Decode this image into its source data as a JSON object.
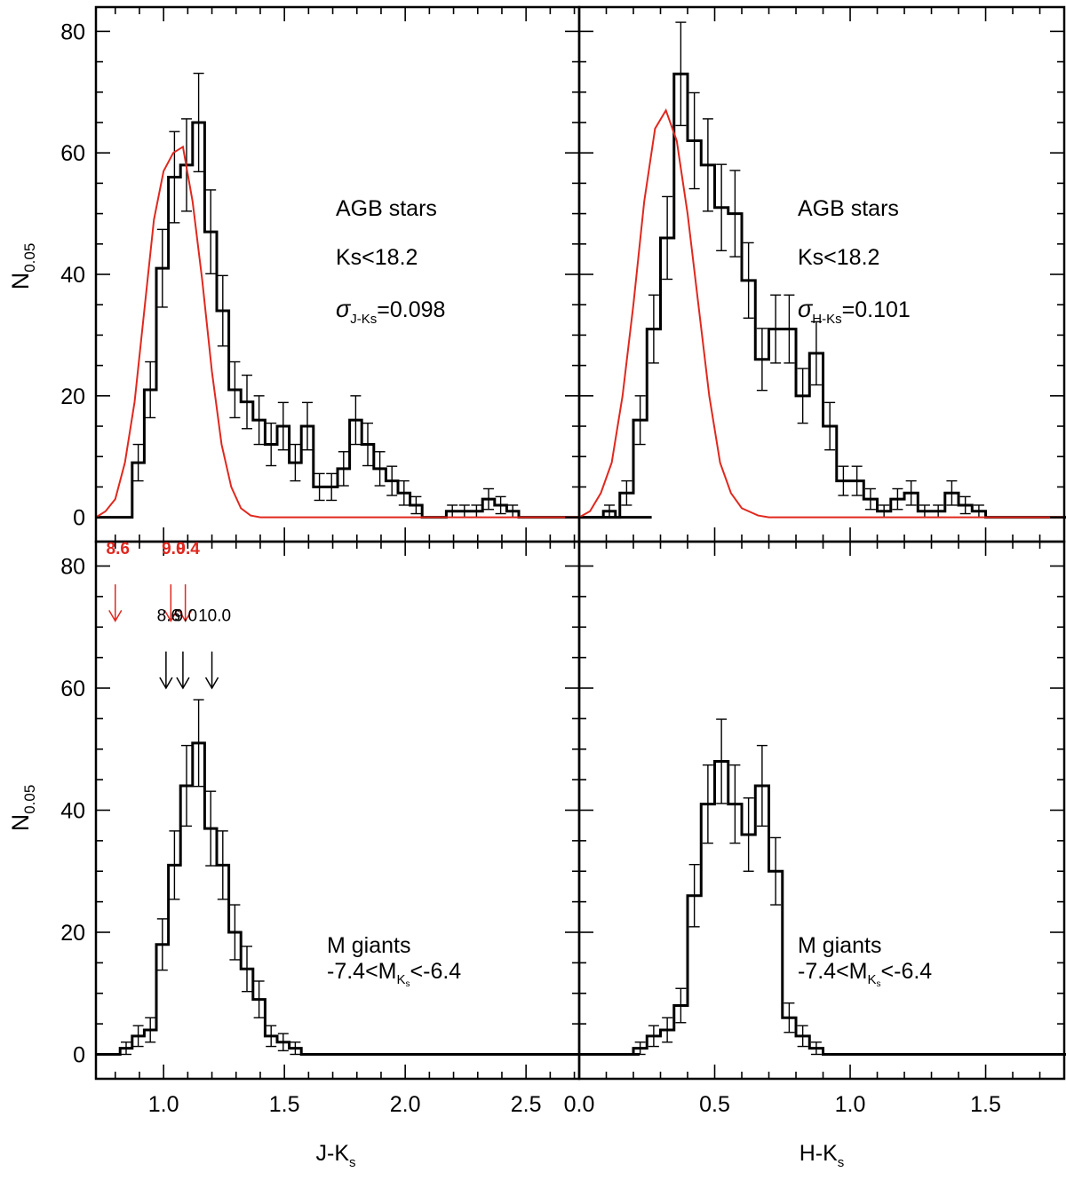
{
  "colors": {
    "histogram": "#000000",
    "fit": "#e0281e",
    "annot_red": "#e0281e",
    "annot_black": "#000000"
  },
  "shared_y_ticks": [
    "0",
    "20",
    "40",
    "60",
    "80"
  ],
  "chart_data": [
    {
      "id": "top_left",
      "type": "histogram",
      "xlabel_main": "",
      "xlabel_sub": "",
      "ylabel_main": "N",
      "ylabel_sub": "0.05",
      "xlim": [
        0.72,
        2.72
      ],
      "ylim": [
        -4,
        84
      ],
      "xticks": [
        1.0,
        1.5,
        2.0,
        2.5
      ],
      "xtick_labels": [],
      "yticks": [
        0,
        20,
        40,
        60,
        80
      ],
      "bin_width": 0.05,
      "bin_start": 0.82,
      "counts": [
        0,
        9,
        21,
        41,
        56,
        58,
        65,
        47,
        34,
        21,
        19,
        16,
        12,
        15,
        9,
        15,
        5,
        5,
        8,
        16,
        12,
        8,
        6,
        4,
        2,
        0,
        0,
        1,
        1,
        1,
        3,
        2,
        1,
        0,
        0,
        0,
        0,
        0,
        0,
        0,
        1,
        0,
        0,
        0
      ],
      "errors": [
        0,
        3,
        4.6,
        6.4,
        7.5,
        7.6,
        8.1,
        6.9,
        5.8,
        4.6,
        4.4,
        4.0,
        3.5,
        3.9,
        3.0,
        3.9,
        2.2,
        2.2,
        2.8,
        4.0,
        3.5,
        2.8,
        2.4,
        2.0,
        1.4,
        0,
        0,
        1,
        1,
        1,
        1.7,
        1.4,
        1,
        0,
        0,
        0,
        0,
        0,
        0,
        0,
        1,
        0,
        0,
        0
      ],
      "fit": {
        "name": "",
        "x": [
          0.72,
          0.76,
          0.8,
          0.84,
          0.88,
          0.92,
          0.96,
          1.0,
          1.04,
          1.08,
          1.12,
          1.16,
          1.2,
          1.24,
          1.28,
          1.32,
          1.36,
          1.4,
          1.5,
          1.7,
          2.0,
          2.72
        ],
        "y": [
          0,
          1,
          3,
          9,
          19,
          34,
          49,
          57,
          60,
          61,
          52,
          39,
          24,
          12,
          5,
          1.5,
          0.3,
          0,
          0,
          0,
          0,
          0
        ]
      },
      "annotations": [
        {
          "text": "AGB stars"
        },
        {
          "text": "Ks<18.2"
        },
        {
          "sigma": "σ",
          "sub": "J-Ks",
          "value": "=0.098"
        }
      ]
    },
    {
      "id": "top_right",
      "type": "histogram",
      "xlabel_main": "",
      "xlabel_sub": "",
      "ylabel_main": "",
      "ylabel_sub": "",
      "xlim": [
        0.0,
        1.79
      ],
      "ylim": [
        -4,
        84
      ],
      "xticks": [
        0.0,
        0.5,
        1.0,
        1.5
      ],
      "xtick_labels": [],
      "yticks": [
        0,
        20,
        40,
        60,
        80
      ],
      "bin_width": 0.05,
      "bin_start": 0.0,
      "counts": [
        0,
        0,
        0,
        4,
        16,
        31,
        46,
        73,
        62,
        58,
        51,
        50,
        39,
        26,
        31,
        31,
        20,
        27,
        15,
        6,
        6,
        3,
        1,
        3,
        4,
        1,
        1,
        4,
        2,
        1,
        0,
        0,
        0,
        0,
        0,
        0,
        0,
        0,
        0,
        1,
        0,
        0,
        0,
        2,
        0,
        0
      ],
      "errors": [
        0,
        0,
        0,
        2,
        4,
        5.6,
        6.8,
        8.5,
        7.9,
        7.6,
        7.1,
        7.1,
        6.2,
        5.1,
        5.6,
        5.6,
        4.5,
        5.2,
        3.9,
        2.4,
        2.4,
        1.7,
        1,
        1.7,
        2,
        1,
        1,
        2,
        1.4,
        1,
        0,
        0,
        0,
        0,
        0,
        0,
        0,
        0,
        0,
        1,
        0,
        0,
        0,
        1.4,
        0,
        0
      ],
      "fit": {
        "name": "",
        "x": [
          0.0,
          0.04,
          0.08,
          0.12,
          0.16,
          0.2,
          0.24,
          0.28,
          0.32,
          0.36,
          0.4,
          0.44,
          0.48,
          0.52,
          0.56,
          0.6,
          0.66,
          0.7,
          0.8,
          1.0,
          1.79
        ],
        "y": [
          0,
          1,
          4,
          9,
          20,
          35,
          52,
          64,
          67,
          62,
          50,
          35,
          20,
          9,
          4,
          1.5,
          0.3,
          0,
          0,
          0,
          0
        ]
      },
      "annotations": [
        {
          "text": "AGB stars"
        },
        {
          "text": "Ks<18.2"
        },
        {
          "sigma": "σ",
          "sub": "H-Ks",
          "value": "=0.101"
        }
      ]
    },
    {
      "id": "bottom_left",
      "type": "histogram",
      "xlabel_main": "J-K",
      "xlabel_sub": "s",
      "ylabel_main": "N",
      "ylabel_sub": "0.05",
      "xlim": [
        0.72,
        2.72
      ],
      "ylim": [
        -4,
        84
      ],
      "xticks": [
        1.0,
        1.5,
        2.0,
        2.5
      ],
      "xtick_labels": [
        "1.0",
        "1.5",
        "2.0",
        "2.5"
      ],
      "yticks": [
        0,
        20,
        40,
        60,
        80
      ],
      "bin_width": 0.05,
      "bin_start": 0.82,
      "counts": [
        1,
        3,
        4,
        18,
        31,
        44,
        51,
        37,
        31,
        20,
        14,
        9,
        3,
        2,
        1,
        0,
        0,
        0,
        0,
        0,
        0,
        0,
        0,
        0,
        0,
        0,
        0,
        0,
        0,
        0,
        0,
        0,
        0,
        0,
        0,
        0,
        0,
        0,
        0,
        0,
        0,
        0,
        0
      ],
      "errors": [
        1,
        1.7,
        2,
        4.2,
        5.6,
        6.6,
        7.1,
        6.1,
        5.6,
        4.5,
        3.7,
        3,
        1.7,
        1.4,
        1,
        0,
        0,
        0,
        0,
        0,
        0,
        0,
        0,
        0,
        0,
        0,
        0,
        0,
        0,
        0,
        0,
        0,
        0,
        0,
        0,
        0,
        0,
        0,
        0,
        0,
        0,
        0,
        0
      ],
      "arrows": [
        {
          "label": "8.6",
          "color": "red",
          "x": 0.8,
          "y_top": 77,
          "y_bot": 71,
          "label_y": 82
        },
        {
          "label": "9.0",
          "color": "red",
          "x": 1.03,
          "y_top": 77,
          "y_bot": 71,
          "label_y": 82
        },
        {
          "label": "9.4",
          "color": "red",
          "x": 1.09,
          "y_top": 77,
          "y_bot": 71,
          "label_y": 82
        },
        {
          "label": "8.6",
          "color": "black",
          "x": 1.01,
          "y_top": 66,
          "y_bot": 60,
          "label_y": 71
        },
        {
          "label": "9.0",
          "color": "black",
          "x": 1.08,
          "y_top": 66,
          "y_bot": 60,
          "label_y": 71
        },
        {
          "label": "10.0",
          "color": "black",
          "x": 1.2,
          "y_top": 66,
          "y_bot": 60,
          "label_y": 71
        }
      ],
      "annotations": [
        {
          "text": "M giants"
        },
        {
          "pre": "-7.4<M",
          "sub1": "K",
          "sub2": "s",
          "post": "<-6.4"
        }
      ]
    },
    {
      "id": "bottom_right",
      "type": "histogram",
      "xlabel_main": "H-K",
      "xlabel_sub": "s",
      "ylabel_main": "",
      "ylabel_sub": "",
      "xlim": [
        0.0,
        1.79
      ],
      "ylim": [
        -4,
        84
      ],
      "xticks": [
        0.0,
        0.5,
        1.0,
        1.5
      ],
      "xtick_labels": [
        "0.0",
        "0.5",
        "1.0",
        "1.5"
      ],
      "yticks": [
        0,
        20,
        40,
        60,
        80
      ],
      "bin_width": 0.05,
      "bin_start": 0.0,
      "counts": [
        0,
        0,
        0,
        0,
        1,
        3,
        4,
        8,
        26,
        41,
        48,
        41,
        36,
        44,
        30,
        6,
        3,
        1,
        0,
        0,
        0,
        0,
        0,
        0,
        0,
        0,
        0,
        0,
        0,
        0,
        0,
        0,
        0,
        0,
        0,
        0
      ],
      "errors": [
        0,
        0,
        0,
        0,
        1,
        1.7,
        2,
        2.8,
        5.1,
        6.4,
        6.9,
        6.4,
        6,
        6.6,
        5.5,
        2.4,
        1.7,
        1,
        0,
        0,
        0,
        0,
        0,
        0,
        0,
        0,
        0,
        0,
        0,
        0,
        0,
        0,
        0,
        0,
        0,
        0
      ],
      "annotations": [
        {
          "text": "M giants"
        },
        {
          "pre": "-7.4<M",
          "sub1": "K",
          "sub2": "s",
          "post": "<-6.4"
        }
      ]
    }
  ]
}
